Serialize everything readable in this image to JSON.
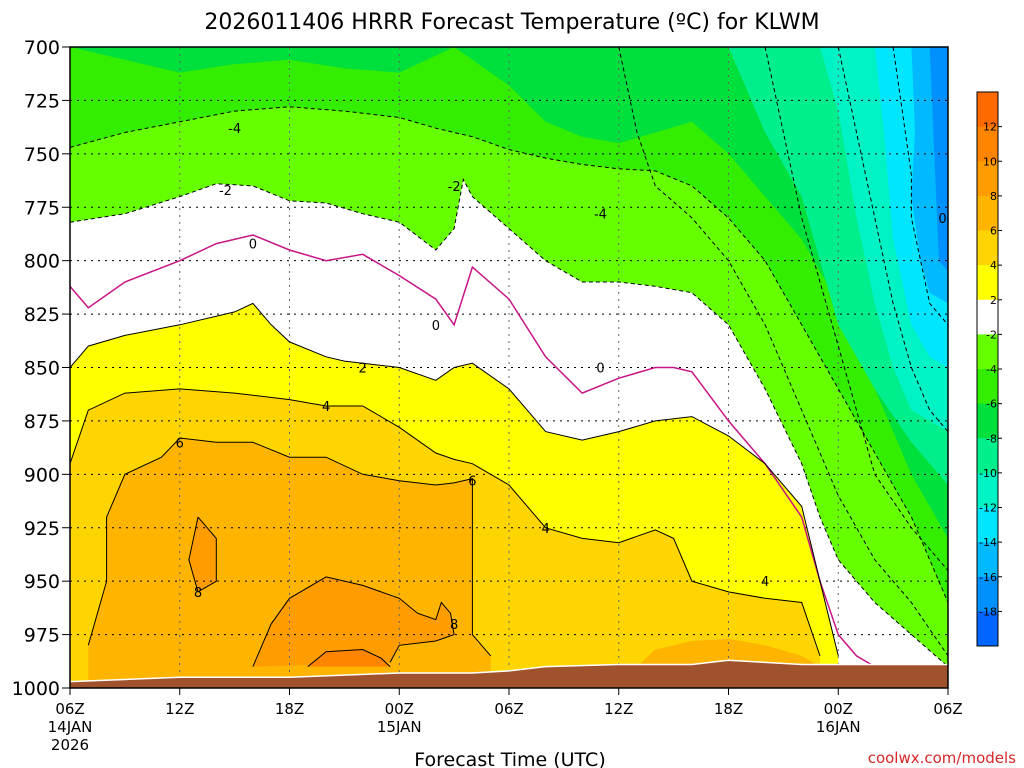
{
  "chart_data": {
    "type": "heatmap",
    "title": "2026011406 HRRR Forecast Temperature (ºC) for KLWM",
    "xlabel": "Forecast Time (UTC)",
    "ylabel": "",
    "y_ticks": [
      "700",
      "725",
      "750",
      "775",
      "800",
      "825",
      "850",
      "875",
      "900",
      "925",
      "950",
      "975",
      "1000"
    ],
    "ylim": [
      700,
      1000
    ],
    "x_ticks": [
      {
        "hours": 0,
        "label": "06Z",
        "sub1": "14JAN",
        "sub2": "2026"
      },
      {
        "hours": 6,
        "label": "12Z",
        "sub1": "",
        "sub2": ""
      },
      {
        "hours": 12,
        "label": "18Z",
        "sub1": "",
        "sub2": ""
      },
      {
        "hours": 18,
        "label": "00Z",
        "sub1": "15JAN",
        "sub2": ""
      },
      {
        "hours": 24,
        "label": "06Z",
        "sub1": "",
        "sub2": ""
      },
      {
        "hours": 30,
        "label": "12Z",
        "sub1": "",
        "sub2": ""
      },
      {
        "hours": 36,
        "label": "18Z",
        "sub1": "",
        "sub2": ""
      },
      {
        "hours": 42,
        "label": "00Z",
        "sub1": "16JAN",
        "sub2": ""
      },
      {
        "hours": 48,
        "label": "06Z",
        "sub1": "",
        "sub2": ""
      }
    ],
    "xlim": [
      0,
      48
    ],
    "grid": true,
    "colorbar": {
      "labels": [
        "12",
        "10",
        "8",
        "6",
        "4",
        "2",
        "-2",
        "-4",
        "-6",
        "-8",
        "-10",
        "-12",
        "-14",
        "-16",
        "-18"
      ],
      "colors": [
        "#ff6a00",
        "#ff8400",
        "#ff9d00",
        "#ffb400",
        "#ffd500",
        "#ffff00",
        "#ffffff",
        "#66ff00",
        "#33ee00",
        "#00e03c",
        "#00ee8c",
        "#00f3c4",
        "#00e6ff",
        "#00b9ff",
        "#0091ff",
        "#0066ff"
      ]
    },
    "contours": [
      {
        "value": -4,
        "label": "-4",
        "points": [
          [
            0,
            747
          ],
          [
            3,
            740
          ],
          [
            6,
            735
          ],
          [
            9,
            730
          ],
          [
            12,
            728
          ],
          [
            15,
            730
          ],
          [
            18,
            733
          ],
          [
            20,
            738
          ],
          [
            22,
            742
          ],
          [
            24,
            748
          ],
          [
            26,
            752
          ],
          [
            28,
            755
          ],
          [
            30,
            757
          ],
          [
            32,
            758
          ],
          [
            34,
            765
          ],
          [
            36,
            780
          ],
          [
            38,
            800
          ],
          [
            40,
            830
          ],
          [
            42,
            860
          ],
          [
            44,
            890
          ],
          [
            46,
            920
          ],
          [
            48,
            960
          ]
        ]
      },
      {
        "value": -2,
        "label": "-2",
        "points": [
          [
            0,
            782
          ],
          [
            3,
            778
          ],
          [
            6,
            770
          ],
          [
            8,
            764
          ],
          [
            10,
            765
          ],
          [
            12,
            772
          ],
          [
            14,
            773
          ],
          [
            16,
            778
          ],
          [
            18,
            782
          ],
          [
            20,
            795
          ],
          [
            21,
            785
          ],
          [
            21.5,
            762
          ],
          [
            22,
            770
          ],
          [
            24,
            785
          ],
          [
            26,
            800
          ],
          [
            28,
            810
          ],
          [
            30,
            810
          ],
          [
            32,
            812
          ],
          [
            34,
            815
          ],
          [
            36,
            830
          ],
          [
            38,
            860
          ],
          [
            40,
            895
          ],
          [
            41,
            920
          ],
          [
            42,
            940
          ],
          [
            44,
            960
          ],
          [
            46,
            975
          ],
          [
            48,
            990
          ]
        ]
      },
      {
        "value": 0,
        "label": "0",
        "points": [
          [
            0,
            812
          ],
          [
            1,
            822
          ],
          [
            3,
            810
          ],
          [
            6,
            800
          ],
          [
            8,
            792
          ],
          [
            10,
            788
          ],
          [
            12,
            795
          ],
          [
            14,
            800
          ],
          [
            16,
            797
          ],
          [
            18,
            807
          ],
          [
            20,
            818
          ],
          [
            21,
            830
          ],
          [
            22,
            803
          ],
          [
            24,
            818
          ],
          [
            26,
            845
          ],
          [
            28,
            862
          ],
          [
            30,
            855
          ],
          [
            32,
            850
          ],
          [
            33,
            850
          ],
          [
            34,
            852
          ],
          [
            36,
            875
          ],
          [
            38,
            895
          ],
          [
            40,
            920
          ],
          [
            41,
            950
          ],
          [
            42,
            975
          ],
          [
            43,
            985
          ],
          [
            44,
            990
          ]
        ]
      },
      {
        "value": 2,
        "label": "2",
        "points": [
          [
            0,
            850
          ],
          [
            1,
            840
          ],
          [
            3,
            835
          ],
          [
            6,
            830
          ],
          [
            9,
            824
          ],
          [
            10,
            820
          ],
          [
            11,
            830
          ],
          [
            12,
            838
          ],
          [
            14,
            845
          ],
          [
            15,
            847
          ],
          [
            16,
            848
          ],
          [
            18,
            850
          ],
          [
            20,
            856
          ],
          [
            21,
            850
          ],
          [
            22,
            848
          ],
          [
            24,
            860
          ],
          [
            26,
            880
          ],
          [
            28,
            884
          ],
          [
            30,
            880
          ],
          [
            32,
            875
          ],
          [
            34,
            873
          ],
          [
            36,
            882
          ],
          [
            38,
            895
          ],
          [
            40,
            915
          ],
          [
            41,
            950
          ],
          [
            42,
            985
          ]
        ]
      },
      {
        "value": 4,
        "label": "4",
        "points": [
          [
            0,
            895
          ],
          [
            1,
            870
          ],
          [
            3,
            862
          ],
          [
            6,
            860
          ],
          [
            9,
            862
          ],
          [
            12,
            865
          ],
          [
            14,
            868
          ],
          [
            16,
            868
          ],
          [
            18,
            878
          ],
          [
            20,
            890
          ],
          [
            21,
            893
          ],
          [
            22,
            895
          ],
          [
            24,
            905
          ],
          [
            26,
            925
          ],
          [
            28,
            930
          ],
          [
            30,
            932
          ],
          [
            32,
            926
          ],
          [
            33,
            930
          ],
          [
            34,
            950
          ],
          [
            36,
            955
          ],
          [
            38,
            958
          ],
          [
            40,
            960
          ],
          [
            41,
            985
          ]
        ]
      },
      {
        "value": 6,
        "label": "6",
        "points": [
          [
            1,
            980
          ],
          [
            2,
            950
          ],
          [
            2,
            920
          ],
          [
            3,
            900
          ],
          [
            5,
            892
          ],
          [
            6,
            883
          ],
          [
            8,
            885
          ],
          [
            10,
            885
          ],
          [
            12,
            892
          ],
          [
            14,
            892
          ],
          [
            16,
            900
          ],
          [
            18,
            903
          ],
          [
            20,
            905
          ],
          [
            21,
            904
          ],
          [
            22,
            902
          ],
          [
            22,
            920
          ],
          [
            22,
            950
          ],
          [
            22,
            975
          ],
          [
            23,
            985
          ]
        ]
      },
      {
        "value": 8,
        "label": "8",
        "points": [
          [
            7,
            920
          ],
          [
            8,
            930
          ],
          [
            8,
            950
          ],
          [
            7,
            955
          ],
          [
            6.5,
            940
          ],
          [
            7,
            920
          ]
        ]
      },
      {
        "value": 8,
        "label": "8",
        "points": [
          [
            10,
            990
          ],
          [
            11,
            970
          ],
          [
            12,
            958
          ],
          [
            14,
            948
          ],
          [
            16,
            952
          ],
          [
            18,
            958
          ],
          [
            19,
            965
          ],
          [
            20,
            968
          ],
          [
            20.3,
            960
          ],
          [
            20.8,
            965
          ],
          [
            21,
            975
          ],
          [
            20,
            978
          ],
          [
            18,
            980
          ],
          [
            17.5,
            988
          ]
        ]
      },
      {
        "value": 10,
        "label": "",
        "points": [
          [
            13,
            990
          ],
          [
            14,
            983
          ],
          [
            16,
            982
          ],
          [
            17,
            986
          ],
          [
            17.5,
            990
          ]
        ]
      }
    ],
    "contour_labels": [
      {
        "text": "-4",
        "h": 9,
        "p": 738
      },
      {
        "text": "-2",
        "h": 8.5,
        "p": 767
      },
      {
        "text": "-2",
        "h": 21,
        "p": 765
      },
      {
        "text": "-4",
        "h": 29,
        "p": 778
      },
      {
        "text": "0",
        "h": 10,
        "p": 792
      },
      {
        "text": "0",
        "h": 20,
        "p": 830
      },
      {
        "text": "0",
        "h": 29,
        "p": 850
      },
      {
        "text": "2",
        "h": 16,
        "p": 850
      },
      {
        "text": "4",
        "h": 14,
        "p": 868
      },
      {
        "text": "4",
        "h": 26,
        "p": 925
      },
      {
        "text": "4",
        "h": 38,
        "p": 950
      },
      {
        "text": "6",
        "h": 6,
        "p": 885
      },
      {
        "text": "6",
        "h": 22,
        "p": 903
      },
      {
        "text": "8",
        "h": 7,
        "p": 955
      },
      {
        "text": "8",
        "h": 21,
        "p": 970
      },
      {
        "text": "0",
        "h": 47.7,
        "p": 780
      }
    ],
    "terrain": {
      "label": "",
      "color": "#a0522d"
    }
  },
  "credit": "coolwx.com/models"
}
